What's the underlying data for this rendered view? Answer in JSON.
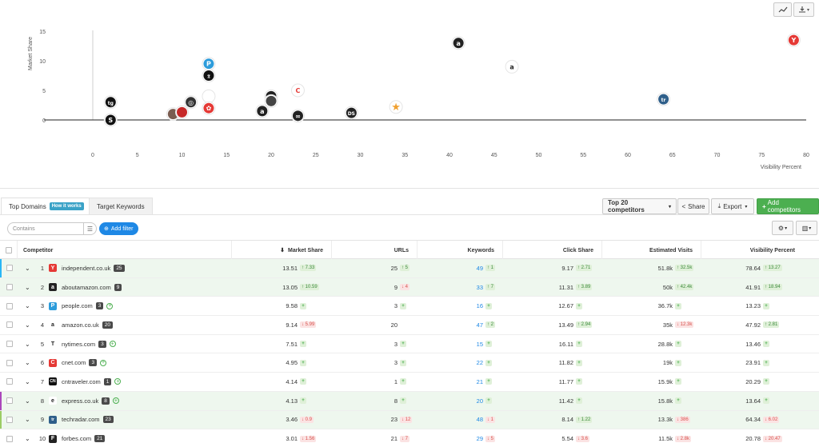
{
  "chart_data": {
    "type": "scatter",
    "xlabel": "Visibility Percent",
    "ylabel": "Market Share",
    "xlim": [
      0,
      80
    ],
    "ylim": [
      0,
      15
    ],
    "xticks": [
      0,
      5,
      10,
      15,
      20,
      25,
      30,
      35,
      40,
      45,
      50,
      55,
      60,
      65,
      70,
      75,
      80
    ],
    "yticks": [
      0,
      5,
      10,
      15
    ],
    "points": [
      {
        "x": 2,
        "y": 3,
        "icon": "tg",
        "color": "#111111"
      },
      {
        "x": 2,
        "y": 0,
        "icon": "S",
        "color": "#111111"
      },
      {
        "x": 9,
        "y": 1,
        "icon": "img",
        "color": "#7a5c50"
      },
      {
        "x": 10,
        "y": 1.3,
        "icon": "red",
        "color": "#c62828"
      },
      {
        "x": 11,
        "y": 3,
        "icon": "eye",
        "color": "#333333"
      },
      {
        "x": 13,
        "y": 9.5,
        "icon": "P",
        "color": "#2d9cdb"
      },
      {
        "x": 13,
        "y": 7.5,
        "icon": "T",
        "color": "#111111"
      },
      {
        "x": 13,
        "y": 4,
        "icon": "fig",
        "color": "#d9534f"
      },
      {
        "x": 13,
        "y": 2,
        "icon": "flower",
        "color": "#e53935"
      },
      {
        "x": 19,
        "y": 1.5,
        "icon": "a",
        "color": "#222222"
      },
      {
        "x": 20,
        "y": 4,
        "icon": "dark",
        "color": "#222222"
      },
      {
        "x": 20,
        "y": 3.2,
        "icon": "dark2",
        "color": "#444444"
      },
      {
        "x": 23,
        "y": 5,
        "icon": "C",
        "color": "#e53935"
      },
      {
        "x": 23,
        "y": 0.7,
        "icon": "loop",
        "color": "#222222"
      },
      {
        "x": 29,
        "y": 1.2,
        "icon": "DS",
        "color": "#222222"
      },
      {
        "x": 34,
        "y": 2.2,
        "icon": "star",
        "color": "#f0a030"
      },
      {
        "x": 41,
        "y": 13,
        "icon": "a",
        "color": "#222222"
      },
      {
        "x": 47,
        "y": 9,
        "icon": "a",
        "color": "#222222"
      },
      {
        "x": 64,
        "y": 3.5,
        "icon": "tr",
        "color": "#2f5f8a"
      },
      {
        "x": 78.6,
        "y": 13.5,
        "icon": "Y",
        "color": "#e53935"
      }
    ]
  },
  "chart_tools": {
    "line_icon": "line-chart-icon",
    "download_icon": "download-icon"
  },
  "tabs": {
    "top_domains": "Top Domains",
    "how_it_works": "How it works",
    "target_keywords": "Target Keywords"
  },
  "toolbar": {
    "competitors": "Top 20 competitors",
    "share": "Share",
    "export": "Export",
    "add_competitors": "Add competitors"
  },
  "filter": {
    "placeholder": "Contains",
    "add_filter": "Add filter"
  },
  "columns": {
    "competitor": "Competitor",
    "market_share": "Market Share",
    "urls": "URLs",
    "keywords": "Keywords",
    "click_share": "Click Share",
    "est_visits": "Estimated Visits",
    "visibility": "Visibility Percent"
  },
  "rows": [
    {
      "rank": "1",
      "domain": "independent.co.uk",
      "count": "25",
      "plus": false,
      "fav": "Y",
      "favColor": "#e53935",
      "bar": "#29b6f6",
      "green": true,
      "ms": "13.51",
      "msChg": {
        "d": "up",
        "t": "7.33"
      },
      "urls": "25",
      "urlsChg": {
        "d": "up",
        "t": "5"
      },
      "kw": "49",
      "kwChg": {
        "d": "up",
        "t": "1"
      },
      "cs": "9.17",
      "csChg": {
        "d": "up",
        "t": "2.71"
      },
      "ev": "51.8k",
      "evChg": {
        "d": "up",
        "t": "32.5k"
      },
      "vp": "78.64",
      "vpChg": {
        "d": "up",
        "t": "13.27"
      }
    },
    {
      "rank": "2",
      "domain": "aboutamazon.com",
      "count": "9",
      "plus": false,
      "fav": "a",
      "favColor": "#222222",
      "bar": "",
      "green": true,
      "ms": "13.05",
      "msChg": {
        "d": "up",
        "t": "10.59"
      },
      "urls": "9",
      "urlsChg": {
        "d": "down",
        "t": "4"
      },
      "kw": "33",
      "kwChg": {
        "d": "up",
        "t": "7"
      },
      "cs": "11.31",
      "csChg": {
        "d": "up",
        "t": "3.89"
      },
      "ev": "50k",
      "evChg": {
        "d": "up",
        "t": "42.4k"
      },
      "vp": "41.91",
      "vpChg": {
        "d": "up",
        "t": "18.94"
      }
    },
    {
      "rank": "3",
      "domain": "people.com",
      "count": "3",
      "plus": true,
      "fav": "P",
      "favColor": "#2d9cdb",
      "bar": "",
      "green": false,
      "ms": "9.58",
      "msChg": {
        "d": "plus",
        "t": "+"
      },
      "urls": "3",
      "urlsChg": {
        "d": "plus",
        "t": "+"
      },
      "kw": "16",
      "kwChg": {
        "d": "plus",
        "t": "+"
      },
      "cs": "12.67",
      "csChg": {
        "d": "plus",
        "t": "+"
      },
      "ev": "36.7k",
      "evChg": {
        "d": "plus",
        "t": "+"
      },
      "vp": "13.23",
      "vpChg": {
        "d": "plus",
        "t": "+"
      }
    },
    {
      "rank": "4",
      "domain": "amazon.co.uk",
      "count": "20",
      "plus": false,
      "fav": "a",
      "favColor": "#ffffff",
      "bar": "",
      "green": false,
      "ms": "9.14",
      "msChg": {
        "d": "down",
        "t": "5.99"
      },
      "urls": "20",
      "urlsChg": null,
      "kw": "47",
      "kwChg": {
        "d": "up",
        "t": "2"
      },
      "cs": "13.49",
      "csChg": {
        "d": "up",
        "t": "2.94"
      },
      "ev": "35k",
      "evChg": {
        "d": "down",
        "t": "12.3k"
      },
      "vp": "47.92",
      "vpChg": {
        "d": "up",
        "t": "2.81"
      }
    },
    {
      "rank": "5",
      "domain": "nytimes.com",
      "count": "3",
      "plus": true,
      "fav": "T",
      "favColor": "#ffffff",
      "bar": "",
      "green": false,
      "ms": "7.51",
      "msChg": {
        "d": "plus",
        "t": "+"
      },
      "urls": "3",
      "urlsChg": {
        "d": "plus",
        "t": "+"
      },
      "kw": "15",
      "kwChg": {
        "d": "plus",
        "t": "+"
      },
      "cs": "16.11",
      "csChg": {
        "d": "plus",
        "t": "+"
      },
      "ev": "28.8k",
      "evChg": {
        "d": "plus",
        "t": "+"
      },
      "vp": "13.46",
      "vpChg": {
        "d": "plus",
        "t": "+"
      }
    },
    {
      "rank": "6",
      "domain": "cnet.com",
      "count": "3",
      "plus": true,
      "fav": "C",
      "favColor": "#e53935",
      "bar": "",
      "green": false,
      "ms": "4.95",
      "msChg": {
        "d": "plus",
        "t": "+"
      },
      "urls": "3",
      "urlsChg": {
        "d": "plus",
        "t": "+"
      },
      "kw": "22",
      "kwChg": {
        "d": "plus",
        "t": "+"
      },
      "cs": "11.82",
      "csChg": {
        "d": "plus",
        "t": "+"
      },
      "ev": "19k",
      "evChg": {
        "d": "plus",
        "t": "+"
      },
      "vp": "23.91",
      "vpChg": {
        "d": "plus",
        "t": "+"
      }
    },
    {
      "rank": "7",
      "domain": "cntraveler.com",
      "count": "1",
      "plus": true,
      "fav": "CN",
      "favColor": "#111111",
      "bar": "",
      "green": false,
      "ms": "4.14",
      "msChg": {
        "d": "plus",
        "t": "+"
      },
      "urls": "1",
      "urlsChg": {
        "d": "plus",
        "t": "+"
      },
      "kw": "21",
      "kwChg": {
        "d": "plus",
        "t": "+"
      },
      "cs": "11.77",
      "csChg": {
        "d": "plus",
        "t": "+"
      },
      "ev": "15.9k",
      "evChg": {
        "d": "plus",
        "t": "+"
      },
      "vp": "20.29",
      "vpChg": {
        "d": "plus",
        "t": "+"
      }
    },
    {
      "rank": "8",
      "domain": "express.co.uk",
      "count": "8",
      "plus": true,
      "fav": "e",
      "favColor": "#ffffff",
      "bar": "#ab47bc",
      "green": true,
      "ms": "4.13",
      "msChg": {
        "d": "plus",
        "t": "+"
      },
      "urls": "8",
      "urlsChg": {
        "d": "plus",
        "t": "+"
      },
      "kw": "20",
      "kwChg": {
        "d": "plus",
        "t": "+"
      },
      "cs": "11.42",
      "csChg": {
        "d": "plus",
        "t": "+"
      },
      "ev": "15.8k",
      "evChg": {
        "d": "plus",
        "t": "+"
      },
      "vp": "13.64",
      "vpChg": {
        "d": "plus",
        "t": "+"
      }
    },
    {
      "rank": "9",
      "domain": "techradar.com",
      "count": "23",
      "plus": false,
      "fav": "tr",
      "favColor": "#2f5f8a",
      "bar": "#9ccc65",
      "green": true,
      "ms": "3.46",
      "msChg": {
        "d": "down",
        "t": "0.9"
      },
      "urls": "23",
      "urlsChg": {
        "d": "down",
        "t": "12"
      },
      "kw": "48",
      "kwChg": {
        "d": "down",
        "t": "1"
      },
      "cs": "8.14",
      "csChg": {
        "d": "up",
        "t": "1.22"
      },
      "ev": "13.3k",
      "evChg": {
        "d": "down",
        "t": "386"
      },
      "vp": "64.34",
      "vpChg": {
        "d": "down",
        "t": "6.02"
      }
    },
    {
      "rank": "10",
      "domain": "forbes.com",
      "count": "21",
      "plus": false,
      "fav": "F",
      "favColor": "#222222",
      "bar": "",
      "green": false,
      "ms": "3.01",
      "msChg": {
        "d": "down",
        "t": "1.56"
      },
      "urls": "21",
      "urlsChg": {
        "d": "down",
        "t": "7"
      },
      "kw": "29",
      "kwChg": {
        "d": "down",
        "t": "5"
      },
      "cs": "5.54",
      "csChg": {
        "d": "down",
        "t": "3.6"
      },
      "ev": "11.5k",
      "evChg": {
        "d": "down",
        "t": "2.8k"
      },
      "vp": "20.78",
      "vpChg": {
        "d": "down",
        "t": "20.47"
      }
    }
  ]
}
